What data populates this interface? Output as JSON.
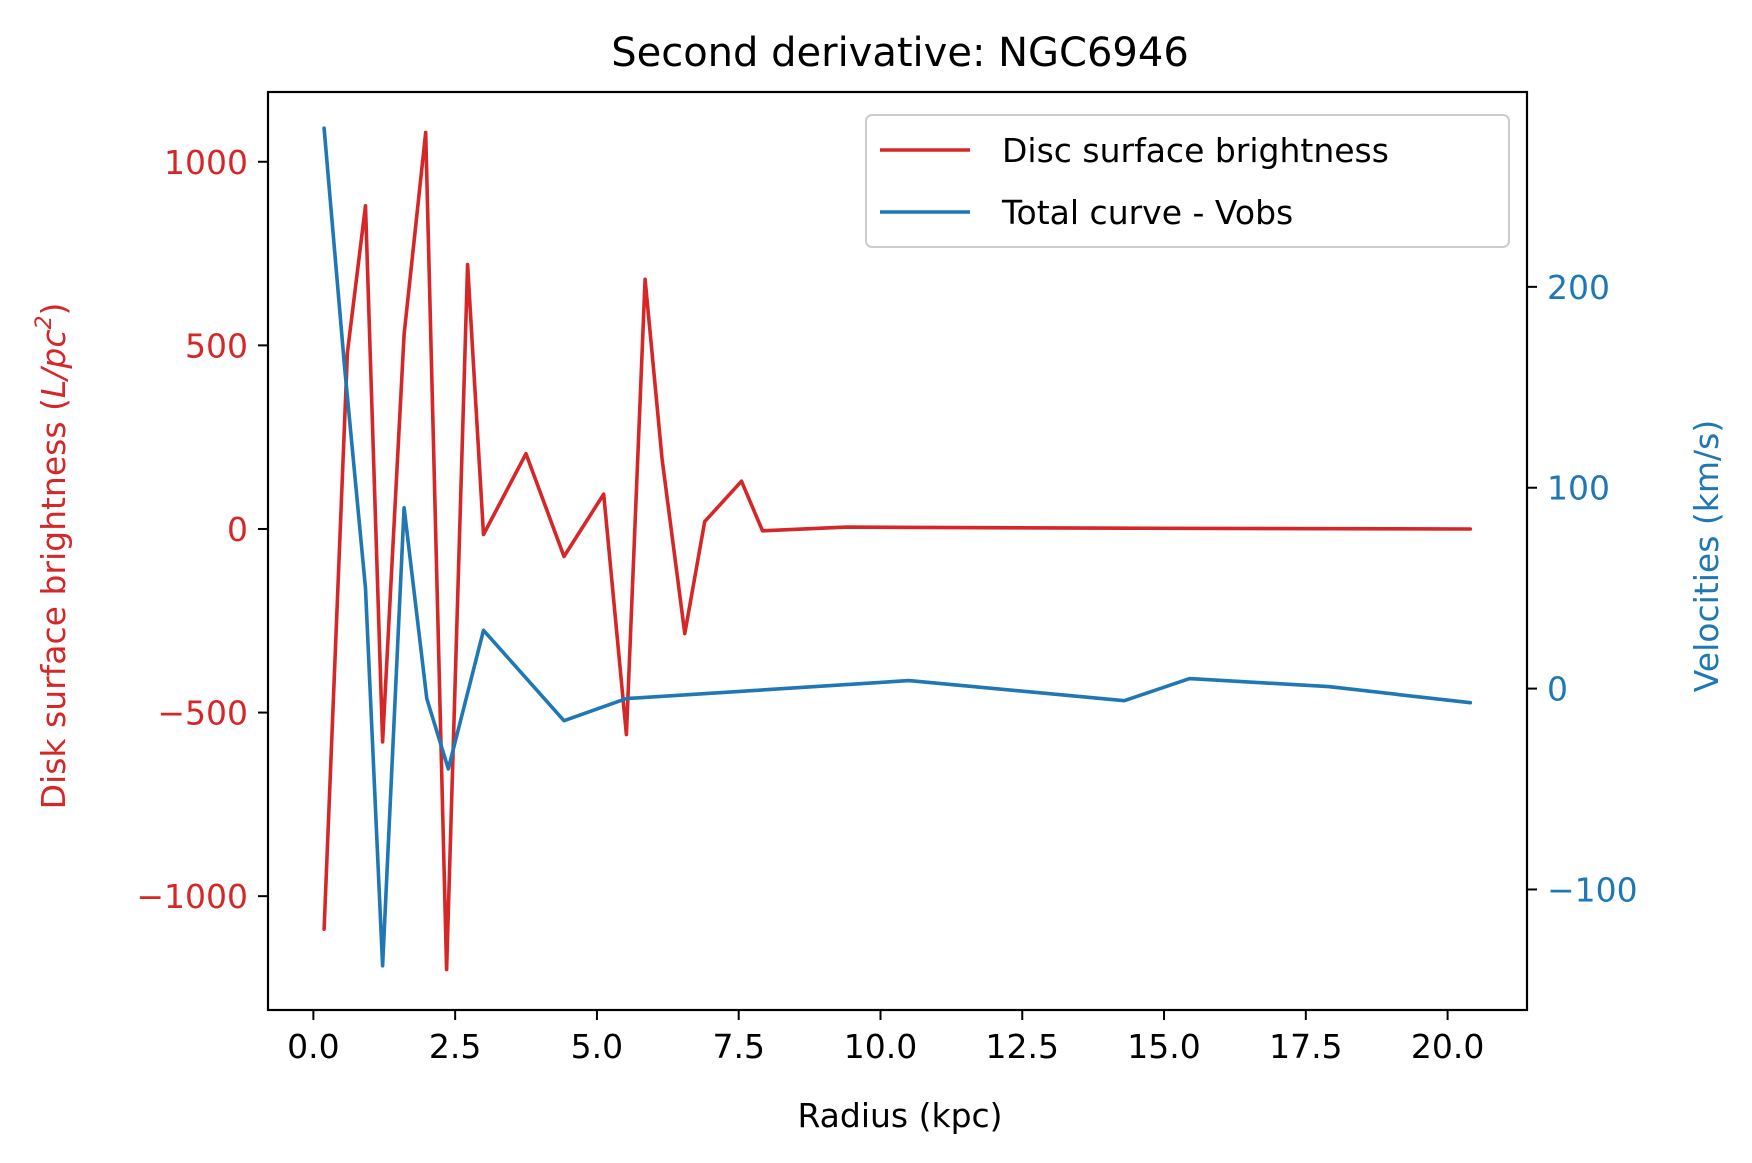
{
  "chart_data": {
    "type": "line",
    "title": "Second derivative: NGC6946",
    "xlabel": "Radius (kpc)",
    "ylabel_left": {
      "prefix": "Disk surface brightness (",
      "unit": "L/pc",
      "exponent": "2",
      "suffix": ")"
    },
    "ylabel_right": "Velocities (km/s)",
    "xlim": [
      -0.8,
      21.4
    ],
    "ylim_left": [
      -1310,
      1190
    ],
    "ylim_right": [
      -160,
      297
    ],
    "xticks": [
      {
        "value": 0.0,
        "label": "0.0"
      },
      {
        "value": 2.5,
        "label": "2.5"
      },
      {
        "value": 5.0,
        "label": "5.0"
      },
      {
        "value": 7.5,
        "label": "7.5"
      },
      {
        "value": 10.0,
        "label": "10.0"
      },
      {
        "value": 12.5,
        "label": "12.5"
      },
      {
        "value": 15.0,
        "label": "15.0"
      },
      {
        "value": 17.5,
        "label": "17.5"
      },
      {
        "value": 20.0,
        "label": "20.0"
      }
    ],
    "yticks_left": [
      {
        "value": 1000,
        "label": "1000"
      },
      {
        "value": 500,
        "label": "500"
      },
      {
        "value": 0,
        "label": "0"
      },
      {
        "value": -500,
        "label": "−500"
      },
      {
        "value": -1000,
        "label": "−1000"
      }
    ],
    "yticks_right": [
      {
        "value": 200,
        "label": "200"
      },
      {
        "value": 100,
        "label": "100"
      },
      {
        "value": 0,
        "label": "0"
      },
      {
        "value": -100,
        "label": "−100"
      }
    ],
    "legend_position": "top-right",
    "grid": false,
    "series": [
      {
        "name": "Disc surface brightness",
        "axis": "left",
        "color": "#d62728",
        "points": [
          [
            0.19,
            -1090
          ],
          [
            0.6,
            480
          ],
          [
            0.92,
            880
          ],
          [
            1.22,
            -580
          ],
          [
            1.6,
            530
          ],
          [
            1.98,
            1080
          ],
          [
            2.35,
            -1200
          ],
          [
            2.72,
            720
          ],
          [
            3.0,
            -15
          ],
          [
            3.75,
            205
          ],
          [
            4.42,
            -75
          ],
          [
            5.12,
            95
          ],
          [
            5.52,
            -560
          ],
          [
            5.85,
            680
          ],
          [
            6.15,
            190
          ],
          [
            6.55,
            -285
          ],
          [
            6.9,
            20
          ],
          [
            7.55,
            130
          ],
          [
            7.92,
            -5
          ],
          [
            9.4,
            5
          ],
          [
            14.3,
            2
          ],
          [
            20.4,
            0
          ]
        ]
      },
      {
        "name": "Total curve - Vobs",
        "axis": "right",
        "color": "#1f77b4",
        "points": [
          [
            0.19,
            279
          ],
          [
            0.55,
            160
          ],
          [
            0.92,
            50
          ],
          [
            1.22,
            -138
          ],
          [
            1.6,
            90
          ],
          [
            2.0,
            -5
          ],
          [
            2.38,
            -40
          ],
          [
            3.0,
            29
          ],
          [
            4.42,
            -16
          ],
          [
            5.52,
            -5
          ],
          [
            10.5,
            4
          ],
          [
            14.3,
            -6
          ],
          [
            15.45,
            5
          ],
          [
            17.9,
            1
          ],
          [
            20.4,
            -7
          ]
        ]
      }
    ]
  }
}
